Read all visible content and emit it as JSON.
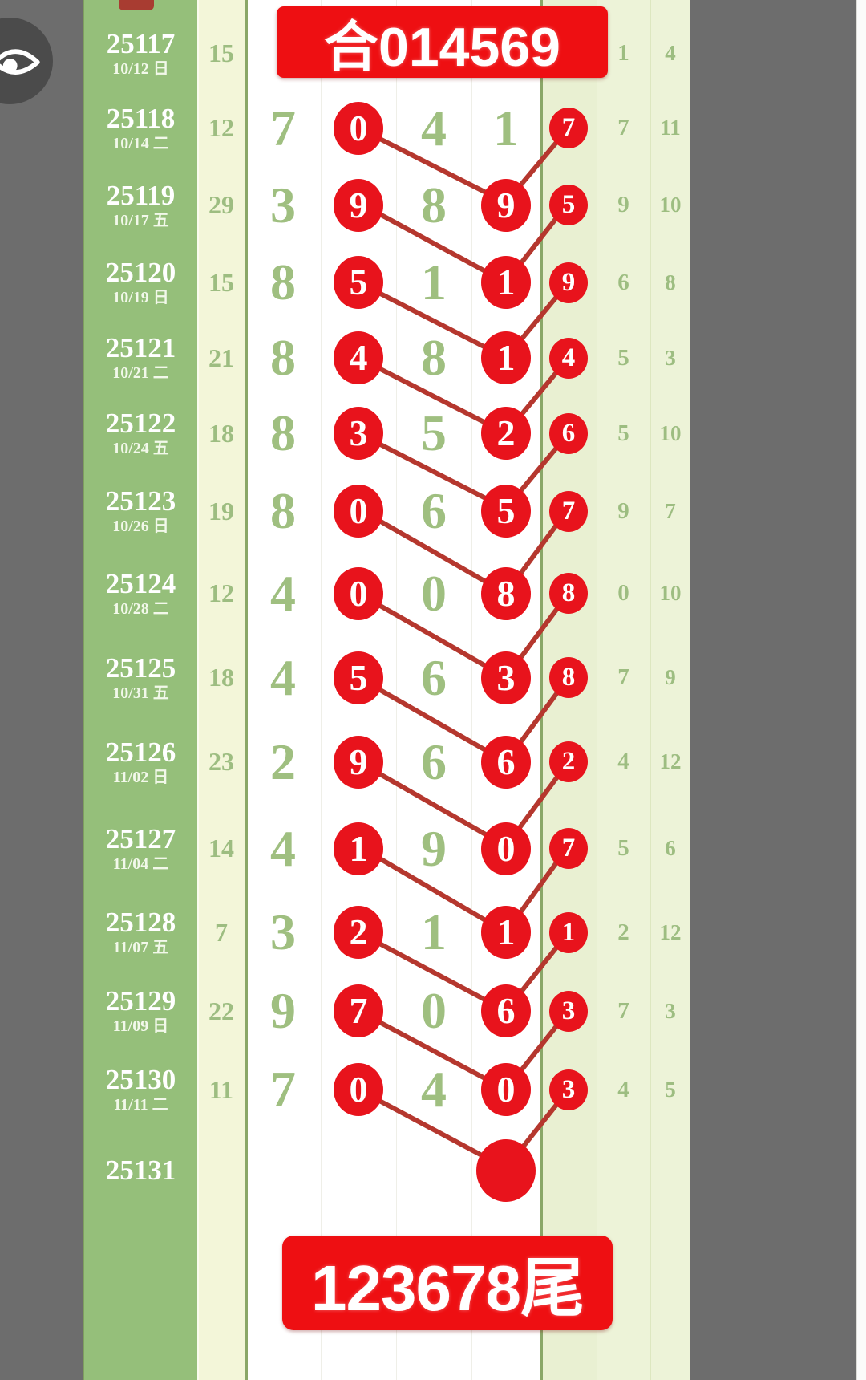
{
  "app": {
    "title": "lottery-trend-chart"
  },
  "top_banner": {
    "text": "合014569"
  },
  "bottom_banner": {
    "text": "123678尾"
  },
  "icons": {
    "eye": "eye-icon"
  },
  "colors": {
    "circle_red": "#e8131c",
    "banner_red": "#ee0f12",
    "line_red": "#b5372e",
    "period_green": "#95bf7a",
    "digit_green": "#9fbf80",
    "separator_green": "#5b7e48",
    "pale_yellow": "#f3f6d9",
    "pale_green": "#edf3d8",
    "side_gray": "#6d6d6d"
  },
  "chart_data": {
    "type": "table",
    "title": "合014569",
    "footer": "123678尾",
    "rows": [
      {
        "kind": "sliver"
      },
      {
        "kind": "data",
        "period": "25117",
        "date": "10/12 日",
        "sum": "15",
        "digits": [
          "",
          "",
          "",
          ""
        ],
        "circled": [],
        "small": "",
        "c6": "1",
        "c7": "4",
        "connect": false,
        "sep": false,
        "ball": false
      },
      {
        "kind": "data",
        "period": "25118",
        "date": "10/14 二",
        "sum": "12",
        "digits": [
          "7",
          "0",
          "4",
          "1"
        ],
        "circled": [
          1
        ],
        "small": "7",
        "c6": "7",
        "c7": "11",
        "connect": true,
        "sep": false,
        "ball": false
      },
      {
        "kind": "data",
        "period": "25119",
        "date": "10/17 五",
        "sum": "29",
        "digits": [
          "3",
          "9",
          "8",
          "9"
        ],
        "circled": [
          1,
          3
        ],
        "small": "5",
        "c6": "9",
        "c7": "10",
        "connect": true,
        "sep": true,
        "ball": false
      },
      {
        "kind": "data",
        "period": "25120",
        "date": "10/19 日",
        "sum": "15",
        "digits": [
          "8",
          "5",
          "1",
          "1"
        ],
        "circled": [
          1,
          3
        ],
        "small": "9",
        "c6": "6",
        "c7": "8",
        "connect": true,
        "sep": false,
        "ball": false
      },
      {
        "kind": "data",
        "period": "25121",
        "date": "10/21 二",
        "sum": "21",
        "digits": [
          "8",
          "4",
          "8",
          "1"
        ],
        "circled": [
          1,
          3
        ],
        "small": "4",
        "c6": "5",
        "c7": "3",
        "connect": true,
        "sep": false,
        "ball": false
      },
      {
        "kind": "data",
        "period": "25122",
        "date": "10/24 五",
        "sum": "18",
        "digits": [
          "8",
          "3",
          "5",
          "2"
        ],
        "circled": [
          1,
          3
        ],
        "small": "6",
        "c6": "5",
        "c7": "10",
        "connect": true,
        "sep": false,
        "ball": false
      },
      {
        "kind": "data",
        "period": "25123",
        "date": "10/26 日",
        "sum": "19",
        "digits": [
          "8",
          "0",
          "6",
          "5"
        ],
        "circled": [
          1,
          3
        ],
        "small": "7",
        "c6": "9",
        "c7": "7",
        "connect": true,
        "sep": true,
        "ball": false
      },
      {
        "kind": "data",
        "period": "25124",
        "date": "10/28 二",
        "sum": "12",
        "digits": [
          "4",
          "0",
          "0",
          "8"
        ],
        "circled": [
          1,
          3
        ],
        "small": "8",
        "c6": "0",
        "c7": "10",
        "connect": true,
        "sep": false,
        "ball": false
      },
      {
        "kind": "data",
        "period": "25125",
        "date": "10/31 五",
        "sum": "18",
        "digits": [
          "4",
          "5",
          "6",
          "3"
        ],
        "circled": [
          1,
          3
        ],
        "small": "8",
        "c6": "7",
        "c7": "9",
        "connect": true,
        "sep": false,
        "ball": false
      },
      {
        "kind": "data",
        "period": "25126",
        "date": "11/02 日",
        "sum": "23",
        "digits": [
          "2",
          "9",
          "6",
          "6"
        ],
        "circled": [
          1,
          3
        ],
        "small": "2",
        "c6": "4",
        "c7": "12",
        "connect": true,
        "sep": false,
        "ball": false
      },
      {
        "kind": "data",
        "period": "25127",
        "date": "11/04 二",
        "sum": "14",
        "digits": [
          "4",
          "1",
          "9",
          "0"
        ],
        "circled": [
          1,
          3
        ],
        "small": "7",
        "c6": "5",
        "c7": "6",
        "connect": true,
        "sep": true,
        "ball": false
      },
      {
        "kind": "data",
        "period": "25128",
        "date": "11/07 五",
        "sum": "7",
        "digits": [
          "3",
          "2",
          "1",
          "1"
        ],
        "circled": [
          1,
          3
        ],
        "small": "1",
        "c6": "2",
        "c7": "12",
        "connect": true,
        "sep": false,
        "ball": false
      },
      {
        "kind": "data",
        "period": "25129",
        "date": "11/09 日",
        "sum": "22",
        "digits": [
          "9",
          "7",
          "0",
          "6"
        ],
        "circled": [
          1,
          3
        ],
        "small": "3",
        "c6": "7",
        "c7": "3",
        "connect": true,
        "sep": false,
        "ball": false
      },
      {
        "kind": "data",
        "period": "25130",
        "date": "11/11 二",
        "sum": "11",
        "digits": [
          "7",
          "0",
          "4",
          "0"
        ],
        "circled": [
          1,
          3
        ],
        "small": "3",
        "c6": "4",
        "c7": "5",
        "connect": true,
        "sep": false,
        "ball": false
      },
      {
        "kind": "data",
        "period": "25131",
        "date": "",
        "sum": "",
        "digits": [
          "",
          "",
          "",
          ""
        ],
        "circled": [],
        "small": "",
        "c6": "",
        "c7": "",
        "connect": false,
        "sep": true,
        "ball": true
      },
      {
        "kind": "blank"
      },
      {
        "kind": "blank"
      }
    ]
  }
}
